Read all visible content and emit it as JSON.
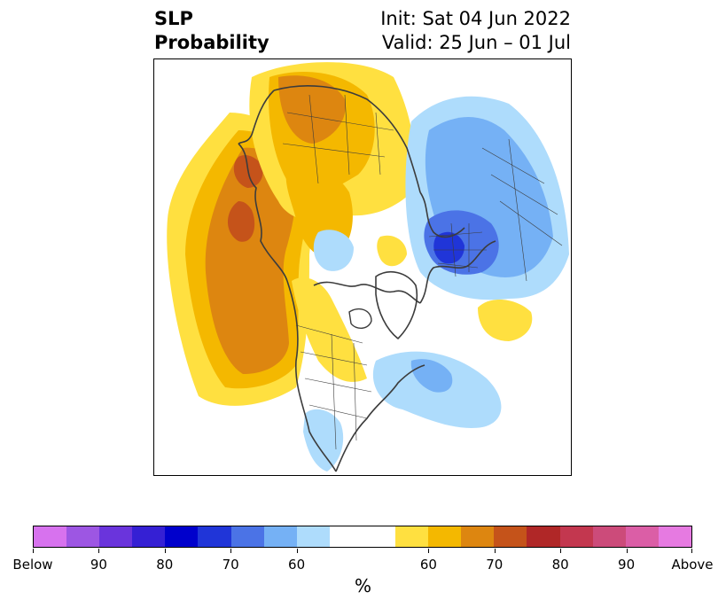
{
  "title": {
    "left_line1": "SLP",
    "left_line2": "Probability",
    "right_line1": "Init: Sat 04 Jun 2022",
    "right_line2": "Valid: 25 Jun – 01 Jul"
  },
  "map": {
    "projection": "north-polar stereographic",
    "field": "SLP probability",
    "regions": [
      {
        "name": "north-pacific-above",
        "category": "above",
        "color": "#dd8610"
      },
      {
        "name": "alaska-canada-above",
        "category": "above",
        "color": "#f4b800"
      },
      {
        "name": "russia-negative",
        "category": "below",
        "color": "#75b1f5"
      },
      {
        "name": "europe-below-core",
        "category": "below",
        "color": "#2035d8"
      },
      {
        "name": "atlantic-below",
        "category": "below",
        "color": "#aedcfc"
      },
      {
        "name": "atlantic-above",
        "category": "above",
        "color": "#ffe040"
      }
    ]
  },
  "colorbar": {
    "colors": [
      "#d772ee",
      "#9d56e3",
      "#6a34dc",
      "#3520d4",
      "#0000cc",
      "#2035d8",
      "#4b73e6",
      "#75b1f5",
      "#aedcfc",
      "#ffffff",
      "#ffe040",
      "#f4b800",
      "#dd8610",
      "#c5531a",
      "#b02727",
      "#c3374f",
      "#cc4b7a",
      "#db5ea6",
      "#e67ae1"
    ],
    "widths": [
      1,
      1,
      1,
      1,
      1,
      1,
      1,
      1,
      1,
      2,
      1,
      1,
      1,
      1,
      1,
      1,
      1,
      1,
      1
    ],
    "tick_labels": [
      "Below",
      "90",
      "80",
      "70",
      "60",
      "60",
      "70",
      "80",
      "90",
      "Above"
    ],
    "unit": "%"
  }
}
